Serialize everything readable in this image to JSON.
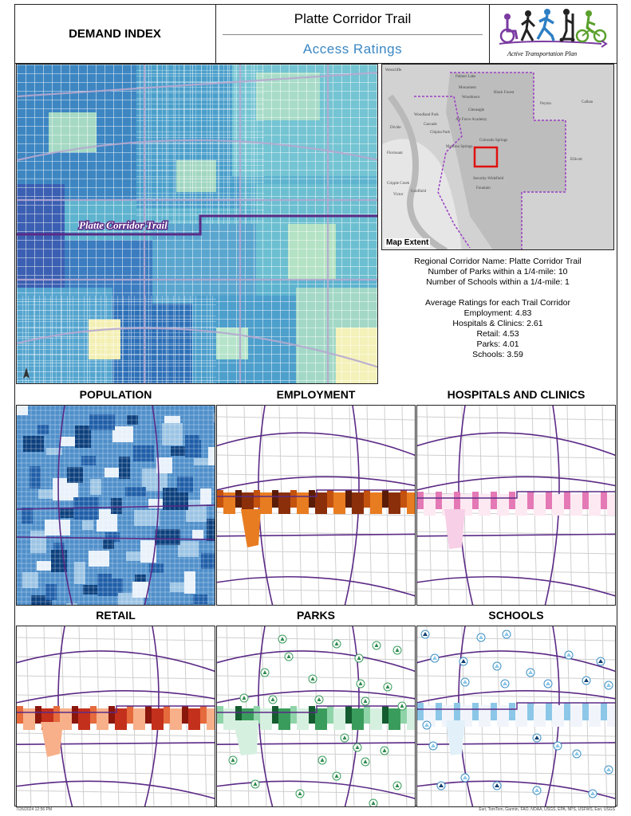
{
  "header": {
    "left_title": "DEMAND INDEX",
    "title": "Platte Corridor Trail",
    "subtitle": "Access Ratings",
    "logo_text": "Active Transportation Plan"
  },
  "main_map": {
    "trail_label": "Platte Corridor Trail"
  },
  "extent_map": {
    "label": "Map Extent",
    "places": [
      "Westcliffe",
      "Palmer Lake",
      "Monument",
      "Woodmoor",
      "Black Forest",
      "Peyton",
      "Calhan",
      "Gleneagle",
      "Air Force Academy",
      "Woodland Park",
      "Cascade",
      "Chipita Park",
      "Colorado Springs",
      "Divide",
      "Manitou Springs",
      "Florissant",
      "Cripple Creek",
      "Victor",
      "Goldfield",
      "Fountain",
      "Security-Widefield",
      "Ellicott"
    ]
  },
  "info": {
    "corridor_name": "Regional Corridor Name: Platte Corridor Trail",
    "parks_count": "Number of Parks within a 1/4-mile: 10",
    "schools_count": "Number of Schools within a 1/4-mile: 1",
    "avg_heading": "Average Ratings for each Trail Corridor",
    "employment": "Employment: 4.83",
    "hospitals": "Hospitals & Clinics: 2.61",
    "retail": "Retail: 4.53",
    "parks": "Parks: 4.01",
    "schools": "Schools: 3.59"
  },
  "sections": {
    "population": "POPULATION",
    "employment": "EMPLOYMENT",
    "hospitals": "HOSPITALS AND CLINICS",
    "retail": "RETAIL",
    "parks": "PARKS",
    "schools": "SCHOOLS"
  },
  "colors": {
    "trail": "#5b2a86",
    "population": [
      "#e8f1fa",
      "#9cc4e4",
      "#4f8fca",
      "#1f5ea8",
      "#0c3f7d"
    ],
    "employment": [
      "#e87c20",
      "#c4520f",
      "#8a2f0a",
      "#5a1c06"
    ],
    "hospitals": [
      "#f7cfe6",
      "#e479b6",
      "#c32a86",
      "#7a0f55"
    ],
    "retail": [
      "#f7b08a",
      "#e56a3c",
      "#c3301b",
      "#8a160c"
    ],
    "parks": [
      "#d6f0e0",
      "#8fd4a8",
      "#3a9c5c",
      "#145c30"
    ],
    "schools": [
      "#e2f0f9",
      "#8cc7e8",
      "#3c8fc4",
      "#123f6e"
    ]
  },
  "footer": {
    "timestamp": "7/26/2024 12:56 PM",
    "credits": "Esri, TomTom, Garmin, FAO, NOAA, USGS, EPA, NPS, USFWS, Esri, USGS"
  }
}
